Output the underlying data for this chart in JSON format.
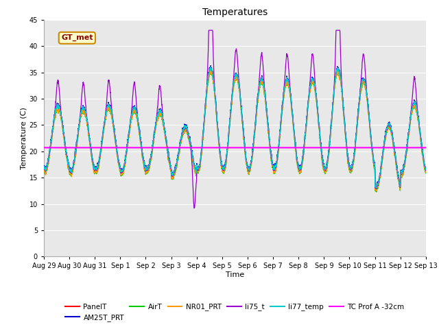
{
  "title": "Temperatures",
  "xlabel": "Time",
  "ylabel": "Temperature (C)",
  "ylim": [
    0,
    45
  ],
  "yticks": [
    0,
    5,
    10,
    15,
    20,
    25,
    30,
    35,
    40,
    45
  ],
  "fig_bg_color": "#ffffff",
  "plot_bg_color": "#e8e8e8",
  "series_colors": {
    "PanelT": "#ff0000",
    "AM25T_PRT": "#0000cc",
    "AirT": "#00cc00",
    "NR01_PRT": "#ff9900",
    "li75_t": "#9900cc",
    "li77_temp": "#00cccc",
    "TC Prof A -32cm": "#ff00ff"
  },
  "tc_prof_value": 20.7,
  "annotation_text": "GT_met",
  "n_days": 15,
  "points_per_day": 144,
  "tick_labels": [
    "Aug 29",
    "Aug 30",
    "Aug 31",
    "Sep 1",
    "Sep 2",
    "Sep 3",
    "Sep 4",
    "Sep 5",
    "Sep 6",
    "Sep 7",
    "Sep 8",
    "Sep 9",
    "Sep 10",
    "Sep 11",
    "Sep 12",
    "Sep 13"
  ],
  "grid_color": "#d0d0d0",
  "legend_ncol": 4,
  "lw": 0.9
}
